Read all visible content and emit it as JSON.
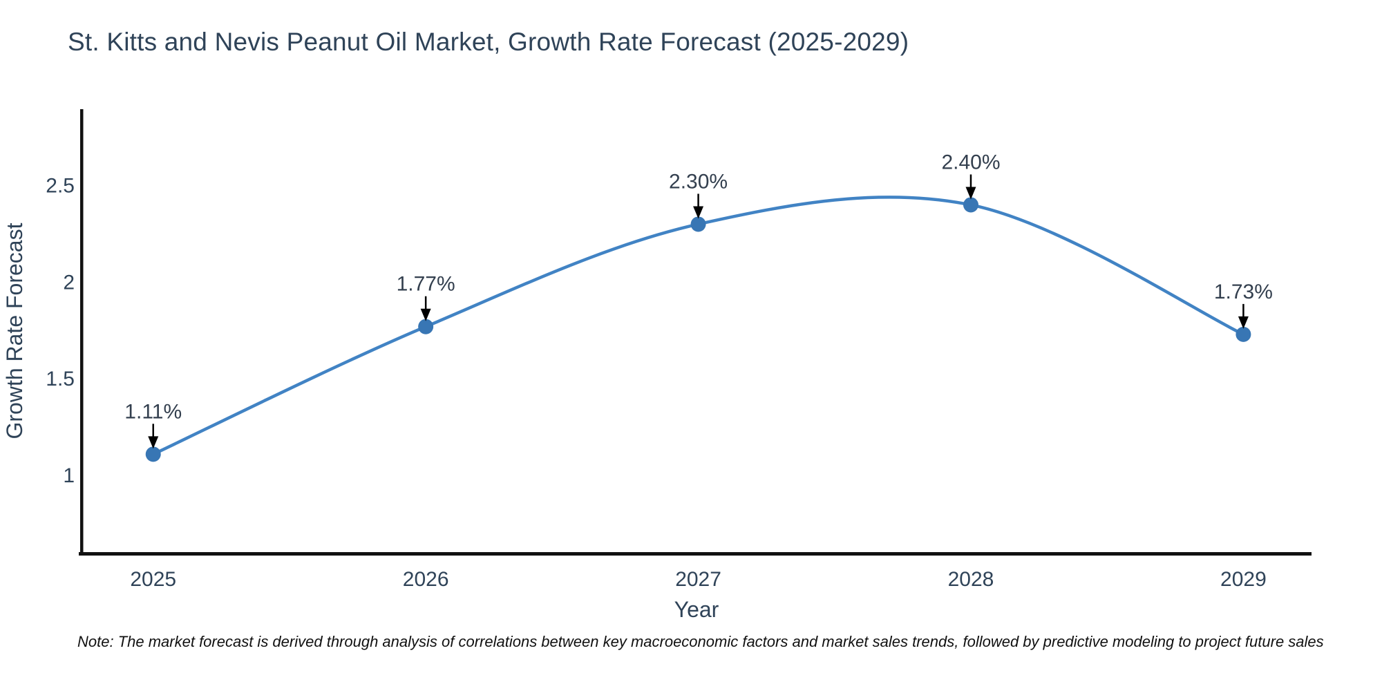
{
  "title": "St. Kitts and Nevis Peanut Oil Market, Growth Rate Forecast (2025-2029)",
  "note": "Note: The market forecast is derived through analysis of correlations between key macroeconomic factors and market sales trends, followed by predictive modeling to project future sales",
  "chart_data": {
    "type": "line",
    "x": [
      2025,
      2026,
      2027,
      2028,
      2029
    ],
    "values": [
      1.11,
      1.77,
      2.3,
      2.4,
      1.73
    ],
    "point_labels": [
      "1.11%",
      "1.77%",
      "2.30%",
      "2.40%",
      "1.73%"
    ],
    "xlabel": "Year",
    "ylabel": "Growth Rate Forecast",
    "yticks": [
      1,
      1.5,
      2,
      2.5
    ],
    "xlim": [
      2024.737,
      2029.25
    ],
    "ylim": [
      0.6,
      2.895
    ],
    "line_shape": "spline",
    "grid": false,
    "legend_position": "none",
    "colors": {
      "line": "#4183c4",
      "marker": "#3876b4",
      "axis": "#111111",
      "tick_text": "#2f4358",
      "annotation_text": "#333f4e",
      "arrow": "#000000"
    }
  }
}
